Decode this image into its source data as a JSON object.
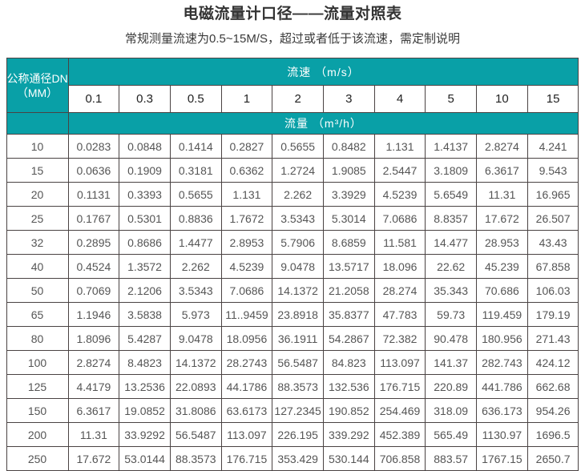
{
  "page": {
    "title": "电磁流量计口径——流量对照表",
    "subtitle": "常规测量流速为0.5~15M/S，超过或者低于该流速，需定制说明"
  },
  "colors": {
    "header_teal": "#09a0a7",
    "border": "#4a4343",
    "body_text": "#555555",
    "title_text": "#333333"
  },
  "table": {
    "corner_header_line1": "公称通径DN",
    "corner_header_line2": "（MM）",
    "velocity_group_header": "流速 （m/s）",
    "flow_group_header": "流量 （m³/h）",
    "velocities": [
      "0.1",
      "0.3",
      "0.5",
      "1",
      "2",
      "3",
      "4",
      "5",
      "10",
      "15"
    ],
    "rows": [
      {
        "dn": "10",
        "values": [
          "0.0283",
          "0.0848",
          "0.1414",
          "0.2827",
          "0.5655",
          "0.8482",
          "1.131",
          "1.4137",
          "2.8274",
          "4.241"
        ]
      },
      {
        "dn": "15",
        "values": [
          "0.0636",
          "0.1909",
          "0.3181",
          "0.6362",
          "1.2724",
          "1.9085",
          "2.5447",
          "3.1809",
          "6.3617",
          "9.543"
        ]
      },
      {
        "dn": "20",
        "values": [
          "0.1131",
          "0.3393",
          "0.5655",
          "1.131",
          "2.262",
          "3.3929",
          "4.5239",
          "5.6549",
          "11.31",
          "16.965"
        ]
      },
      {
        "dn": "25",
        "values": [
          "0.1767",
          "0.5301",
          "0.8836",
          "1.7672",
          "3.5343",
          "5.3014",
          "7.0686",
          "8.8357",
          "17.672",
          "26.507"
        ]
      },
      {
        "dn": "32",
        "values": [
          "0.2895",
          "0.8686",
          "1.4477",
          "2.8953",
          "5.7906",
          "8.6859",
          "11.581",
          "14.477",
          "28.953",
          "43.43"
        ]
      },
      {
        "dn": "40",
        "values": [
          "0.4524",
          "1.3572",
          "2.262",
          "4.5239",
          "9.0478",
          "13.5717",
          "18.096",
          "22.62",
          "45.239",
          "67.858"
        ]
      },
      {
        "dn": "50",
        "values": [
          "0.7069",
          "2.1206",
          "3.5343",
          "7.0686",
          "14.1372",
          "21.2058",
          "28.274",
          "35.343",
          "70.686",
          "106.03"
        ]
      },
      {
        "dn": "65",
        "values": [
          "1.1946",
          "3.5838",
          "5.973",
          "11..9459",
          "23.8918",
          "35.8377",
          "47.783",
          "59.73",
          "119.459",
          "179.19"
        ]
      },
      {
        "dn": "80",
        "values": [
          "1.8096",
          "5.4287",
          "9.0478",
          "18.0956",
          "36.1911",
          "54.2867",
          "72.382",
          "90.478",
          "180.956",
          "271.43"
        ]
      },
      {
        "dn": "100",
        "values": [
          "2.8274",
          "8.4823",
          "14.1372",
          "28.2743",
          "56.5487",
          "84.823",
          "113.097",
          "141.37",
          "282.743",
          "424.12"
        ]
      },
      {
        "dn": "125",
        "values": [
          "4.4179",
          "13.2536",
          "22.0893",
          "44.1786",
          "88.3573",
          "132.536",
          "176.715",
          "220.89",
          "441.786",
          "662.68"
        ]
      },
      {
        "dn": "150",
        "values": [
          "6.3617",
          "19.0852",
          "31.8086",
          "63.6173",
          "127.2345",
          "190.852",
          "254.469",
          "318.09",
          "636.173",
          "954.26"
        ]
      },
      {
        "dn": "200",
        "values": [
          "11.31",
          "33.9292",
          "56.5487",
          "113.097",
          "226.195",
          "339.292",
          "452.389",
          "565.49",
          "1130.97",
          "1696.5"
        ]
      },
      {
        "dn": "250",
        "values": [
          "17.672",
          "53.0144",
          "88.3573",
          "176.715",
          "353.429",
          "530.144",
          "706.858",
          "883.57",
          "1767.15",
          "2650.7"
        ]
      }
    ]
  }
}
